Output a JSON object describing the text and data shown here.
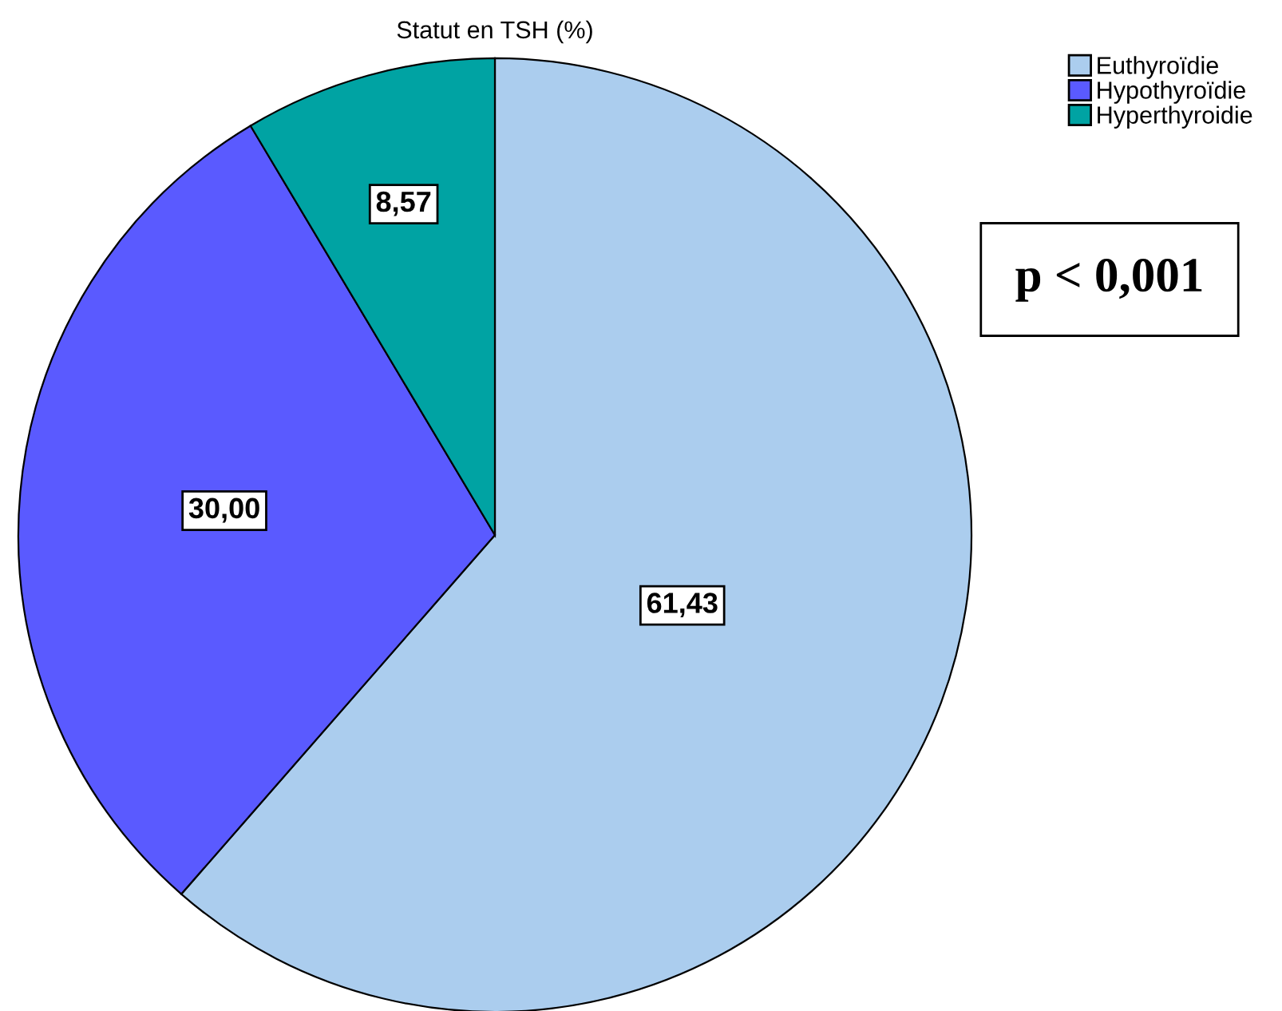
{
  "chart_data": {
    "type": "pie",
    "title": "Statut en TSH (%)",
    "categories": [
      "Euthyroïdie",
      "Hypothyroïdie",
      "Hyperthyroidie"
    ],
    "values": [
      61.43,
      30.0,
      8.57
    ],
    "value_labels": [
      "61,43",
      "30,00",
      "8,57"
    ],
    "colors": [
      "#abcdee",
      "#5a5aff",
      "#00a3a3"
    ],
    "legend": "top right",
    "annotations": [
      "p < 0,001"
    ]
  }
}
